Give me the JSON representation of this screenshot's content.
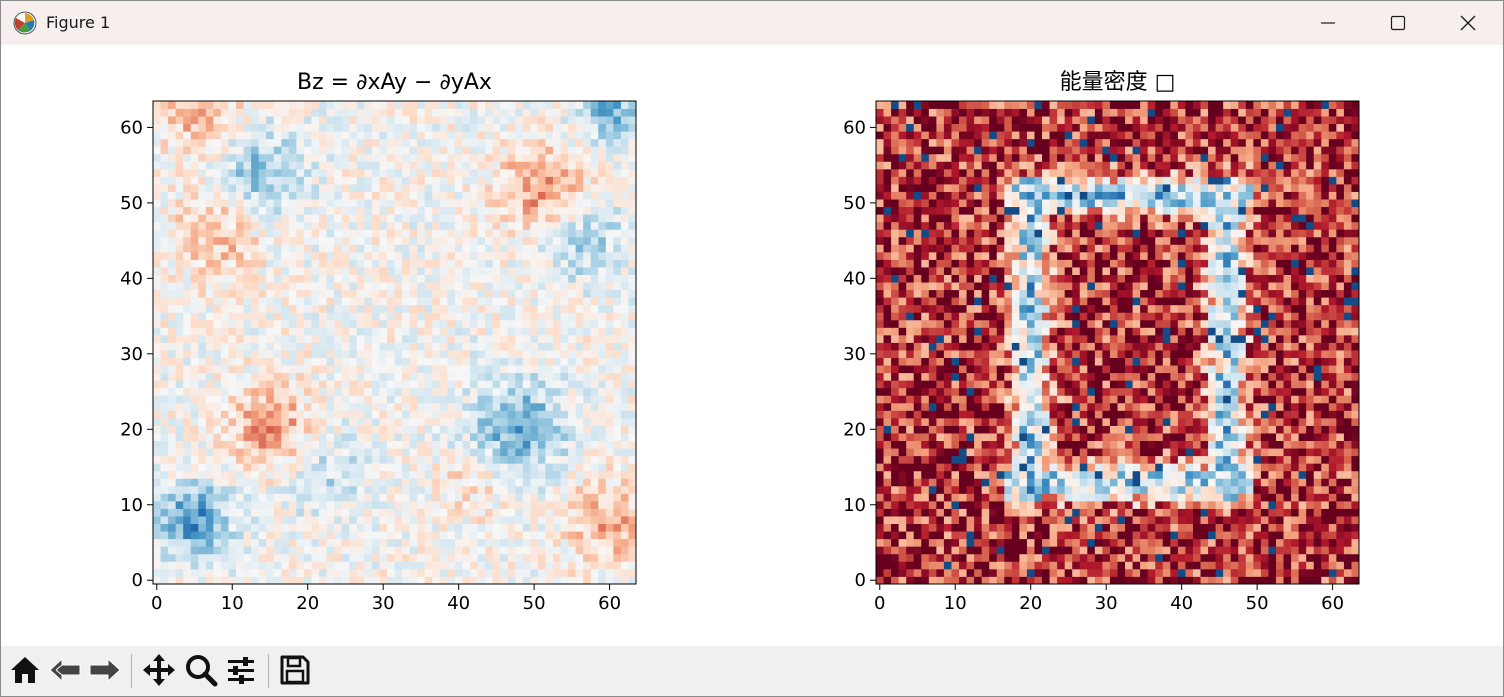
{
  "window": {
    "title": "Figure 1",
    "icons": [
      "matplotlib-logo-icon",
      "minimize-icon",
      "maximize-icon",
      "close-icon"
    ]
  },
  "chart_data": [
    {
      "type": "heatmap",
      "title": "Bz = ∂xAy − ∂yAx",
      "xlabel": "",
      "ylabel": "",
      "grid_size": [
        64,
        64
      ],
      "xlim": [
        -0.5,
        63.5
      ],
      "ylim": [
        -0.5,
        63.5
      ],
      "xticks": [
        0,
        10,
        20,
        30,
        40,
        50,
        60
      ],
      "yticks": [
        0,
        10,
        20,
        30,
        40,
        50,
        60
      ],
      "colormap": "RdBu_r",
      "origin": "lower",
      "grid": false,
      "colorbar": false
    },
    {
      "type": "heatmap",
      "title": "能量密度 □",
      "xlabel": "",
      "ylabel": "",
      "grid_size": [
        64,
        64
      ],
      "xlim": [
        -0.5,
        63.5
      ],
      "ylim": [
        -0.5,
        63.5
      ],
      "xticks": [
        0,
        10,
        20,
        30,
        40,
        50,
        60
      ],
      "yticks": [
        0,
        10,
        20,
        30,
        40,
        50,
        60
      ],
      "colormap": "RdBu_r",
      "origin": "lower",
      "grid": false,
      "colorbar": false
    }
  ],
  "toolbar": {
    "buttons": [
      {
        "name": "home",
        "icon": "home-icon"
      },
      {
        "name": "back",
        "icon": "back-arrow-icon"
      },
      {
        "name": "forward",
        "icon": "forward-arrow-icon"
      },
      {
        "name": "pan",
        "icon": "move-icon"
      },
      {
        "name": "zoom",
        "icon": "zoom-icon"
      },
      {
        "name": "configure-subplots",
        "icon": "sliders-icon"
      },
      {
        "name": "save",
        "icon": "save-icon"
      }
    ]
  },
  "colors": {
    "titlebar": "#f7efee",
    "toolbar": "#f0f0f0",
    "cmap_low": "#053061",
    "cmap_mid": "#f7f7f7",
    "cmap_high": "#67001f"
  }
}
